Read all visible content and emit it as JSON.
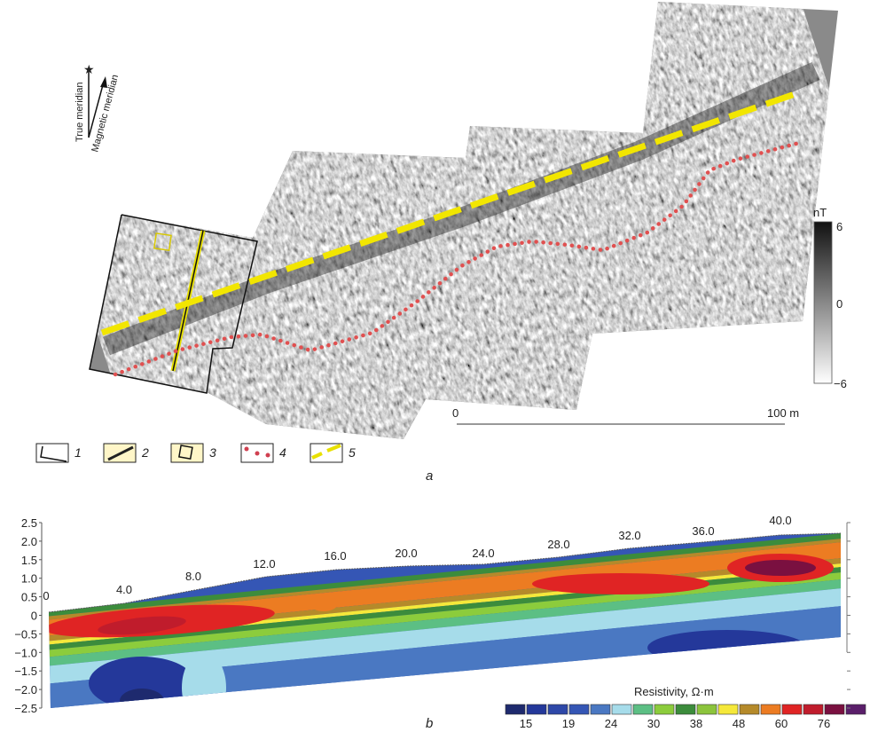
{
  "panel_a": {
    "label": "a",
    "north_arrow": {
      "true_label": "True meridian",
      "magnetic_label": "Magnetic meridian",
      "icons": [
        "star-icon",
        "arrow-icon"
      ]
    },
    "colorbar": {
      "unit": "nT",
      "max": "6",
      "mid": "0",
      "min": "−6",
      "colors": [
        "#ffffff",
        "#888888",
        "#111111"
      ]
    },
    "scale_bar": {
      "start": "0",
      "end": "100 m"
    },
    "legend": [
      {
        "num": "1",
        "symbol": "survey-outline"
      },
      {
        "num": "2",
        "symbol": "profile-line"
      },
      {
        "num": "3",
        "symbol": "square-outline"
      },
      {
        "num": "4",
        "symbol": "red-dots"
      },
      {
        "num": "5",
        "symbol": "yellow-dashes"
      }
    ],
    "colors": {
      "dashed_line": "#f2e600",
      "dotted_line": "#e05050"
    }
  },
  "panel_b": {
    "label": "b",
    "y_ticks": [
      "2.5",
      "2.0",
      "1.5",
      "1.0",
      "0.5",
      "0",
      "−0.5",
      "−1.0",
      "−1.5",
      "−2.0",
      "−2.5"
    ],
    "distance_labels": [
      "0",
      "4.0",
      "8.0",
      "12.0",
      "16.0",
      "20.0",
      "24.0",
      "28.0",
      "32.0",
      "36.0",
      "40.0"
    ],
    "legend_title": "Resistivity, Ω·m",
    "legend_labels": [
      "15",
      "19",
      "24",
      "30",
      "38",
      "48",
      "60",
      "76"
    ],
    "legend_colors": [
      "#1e2a6e",
      "#24389a",
      "#2e48a8",
      "#3556b5",
      "#4a78c2",
      "#a6dcea",
      "#5cbf84",
      "#8ccc3c",
      "#3c8c3c",
      "#8cc43c",
      "#f5e83a",
      "#b58a2a",
      "#ec7c22",
      "#e02424",
      "#c01c2c",
      "#7a1040",
      "#5a1e6a"
    ]
  }
}
